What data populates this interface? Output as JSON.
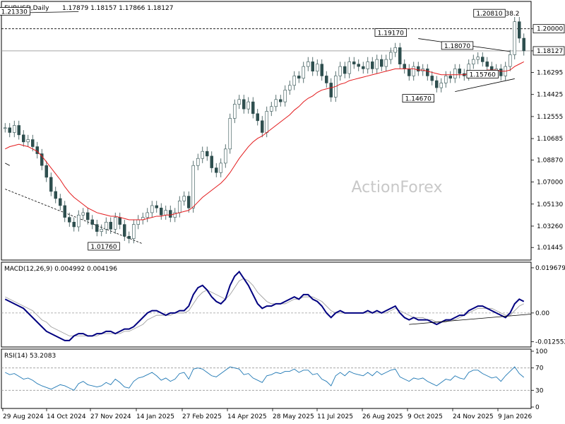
{
  "header": {
    "symbol": "EURUSD,Daily",
    "ohlc": "1.17879 1.18157 1.17866 1.18127"
  },
  "watermark": "ActionForex",
  "colors": {
    "bull": "#2f4f4f",
    "ma": "#e31a1c",
    "macd": "#000080",
    "signal": "#a0a0a0",
    "rsi": "#1f78b4",
    "price_label_bg": "#ffffff"
  },
  "chart_data": [
    {
      "type": "candlestick",
      "title": "EURUSD,Daily",
      "ylim": [
        1.005,
        1.222
      ],
      "y_ticks": [
        "1.20000",
        "1.18127",
        "1.16295",
        "1.14425",
        "1.12555",
        "1.10685",
        "1.08870",
        "1.07000",
        "1.05130",
        "1.03260",
        "1.01445"
      ],
      "current_price": "1.18127",
      "highlight_level": "1.20000",
      "annotations": [
        {
          "label": "1.20810",
          "value": 1.2081
        },
        {
          "label": "38.2",
          "value": 1.2081
        },
        {
          "label": "1.19170",
          "value": 1.1917
        },
        {
          "label": "1.18070",
          "value": 1.1807
        },
        {
          "label": "1.15760",
          "value": 1.1576
        },
        {
          "label": "1.14670",
          "value": 1.1467
        },
        {
          "label": "1.21330",
          "value": 1.2133
        },
        {
          "label": "1.01760",
          "value": 1.0176
        }
      ],
      "close_series": [
        1.116,
        1.112,
        1.118,
        1.11,
        1.104,
        1.106,
        1.1,
        1.094,
        1.084,
        1.074,
        1.062,
        1.056,
        1.05,
        1.04,
        1.036,
        1.032,
        1.042,
        1.044,
        1.038,
        1.034,
        1.028,
        1.03,
        1.036,
        1.03,
        1.04,
        1.034,
        1.024,
        1.022,
        1.034,
        1.038,
        1.04,
        1.044,
        1.05,
        1.048,
        1.042,
        1.046,
        1.04,
        1.044,
        1.054,
        1.058,
        1.048,
        1.084,
        1.09,
        1.096,
        1.092,
        1.082,
        1.078,
        1.086,
        1.098,
        1.124,
        1.136,
        1.14,
        1.132,
        1.138,
        1.128,
        1.122,
        1.112,
        1.13,
        1.134,
        1.14,
        1.138,
        1.148,
        1.152,
        1.16,
        1.158,
        1.168,
        1.172,
        1.164,
        1.17,
        1.16,
        1.154,
        1.142,
        1.16,
        1.168,
        1.162,
        1.172,
        1.17,
        1.168,
        1.166,
        1.172,
        1.166,
        1.174,
        1.168,
        1.174,
        1.18,
        1.184,
        1.17,
        1.166,
        1.16,
        1.168,
        1.164,
        1.166,
        1.16,
        1.156,
        1.15,
        1.154,
        1.16,
        1.158,
        1.166,
        1.162,
        1.16,
        1.17,
        1.174,
        1.176,
        1.172,
        1.168,
        1.164,
        1.166,
        1.16,
        1.168,
        1.178,
        1.206,
        1.192,
        1.18127
      ],
      "ma_series": [
        1.098,
        1.1,
        1.101,
        1.102,
        1.101,
        1.1,
        1.098,
        1.096,
        1.092,
        1.087,
        1.082,
        1.077,
        1.072,
        1.066,
        1.061,
        1.057,
        1.054,
        1.051,
        1.048,
        1.046,
        1.044,
        1.043,
        1.042,
        1.041,
        1.041,
        1.04,
        1.039,
        1.038,
        1.038,
        1.038,
        1.038,
        1.039,
        1.04,
        1.041,
        1.041,
        1.042,
        1.042,
        1.043,
        1.044,
        1.045,
        1.046,
        1.049,
        1.053,
        1.057,
        1.06,
        1.063,
        1.066,
        1.069,
        1.073,
        1.078,
        1.084,
        1.09,
        1.095,
        1.1,
        1.104,
        1.107,
        1.109,
        1.112,
        1.115,
        1.118,
        1.121,
        1.124,
        1.127,
        1.131,
        1.134,
        1.138,
        1.141,
        1.143,
        1.146,
        1.148,
        1.149,
        1.15,
        1.151,
        1.153,
        1.154,
        1.156,
        1.157,
        1.158,
        1.159,
        1.16,
        1.161,
        1.162,
        1.163,
        1.164,
        1.165,
        1.166,
        1.166,
        1.166,
        1.166,
        1.166,
        1.165,
        1.165,
        1.164,
        1.163,
        1.162,
        1.161,
        1.161,
        1.161,
        1.161,
        1.161,
        1.161,
        1.162,
        1.163,
        1.164,
        1.164,
        1.165,
        1.165,
        1.165,
        1.164,
        1.164,
        1.165,
        1.168,
        1.17,
        1.172
      ]
    },
    {
      "type": "line",
      "title": "MACD(12,26,9) 0.004992 0.004196",
      "ylim": [
        -0.0142,
        0.0212
      ],
      "y_ticks": [
        "0.019679",
        "0.00",
        "-0.012552"
      ],
      "y_tick_values": [
        0.019679,
        0.0,
        -0.012552
      ],
      "macd_series": [
        0.006,
        0.005,
        0.004,
        0.003,
        0.002,
        0.0,
        -0.002,
        -0.004,
        -0.006,
        -0.008,
        -0.009,
        -0.01,
        -0.011,
        -0.012,
        -0.012,
        -0.01,
        -0.009,
        -0.009,
        -0.01,
        -0.01,
        -0.009,
        -0.009,
        -0.008,
        -0.008,
        -0.009,
        -0.008,
        -0.007,
        -0.007,
        -0.006,
        -0.004,
        -0.002,
        0.0,
        0.001,
        0.001,
        0.0,
        -0.001,
        0.0,
        0.0,
        0.001,
        0.001,
        0.003,
        0.008,
        0.011,
        0.012,
        0.01,
        0.007,
        0.005,
        0.004,
        0.006,
        0.012,
        0.016,
        0.018,
        0.015,
        0.012,
        0.008,
        0.004,
        0.002,
        0.003,
        0.003,
        0.004,
        0.004,
        0.005,
        0.006,
        0.007,
        0.006,
        0.008,
        0.008,
        0.006,
        0.005,
        0.003,
        0.0,
        -0.002,
        0.0,
        0.001,
        0.0,
        0.0,
        0.0,
        0.0,
        0.0,
        0.001,
        0.0,
        0.001,
        0.0,
        0.001,
        0.002,
        0.003,
        0.0,
        -0.002,
        -0.003,
        -0.002,
        -0.003,
        -0.003,
        -0.003,
        -0.004,
        -0.005,
        -0.004,
        -0.003,
        -0.003,
        -0.002,
        -0.001,
        -0.001,
        0.001,
        0.002,
        0.003,
        0.003,
        0.002,
        0.001,
        0.0,
        -0.001,
        -0.002,
        0.0,
        0.004,
        0.006,
        0.005
      ],
      "signal_series": [
        0.007,
        0.006,
        0.005,
        0.004,
        0.003,
        0.002,
        0.001,
        -0.001,
        -0.003,
        -0.004,
        -0.006,
        -0.007,
        -0.008,
        -0.009,
        -0.01,
        -0.01,
        -0.01,
        -0.01,
        -0.01,
        -0.01,
        -0.01,
        -0.009,
        -0.009,
        -0.009,
        -0.009,
        -0.009,
        -0.008,
        -0.008,
        -0.007,
        -0.006,
        -0.005,
        -0.003,
        -0.002,
        -0.001,
        -0.001,
        -0.001,
        -0.001,
        0.0,
        0.0,
        0.0,
        0.001,
        0.004,
        0.007,
        0.009,
        0.01,
        0.009,
        0.008,
        0.007,
        0.006,
        0.008,
        0.011,
        0.014,
        0.015,
        0.014,
        0.012,
        0.009,
        0.007,
        0.005,
        0.004,
        0.004,
        0.004,
        0.004,
        0.005,
        0.006,
        0.006,
        0.007,
        0.007,
        0.007,
        0.006,
        0.005,
        0.003,
        0.001,
        0.0,
        0.0,
        0.0,
        0.0,
        0.0,
        0.0,
        0.0,
        0.0,
        0.0,
        0.0,
        0.0,
        0.0,
        0.001,
        0.002,
        0.001,
        0.0,
        -0.001,
        -0.002,
        -0.002,
        -0.002,
        -0.003,
        -0.003,
        -0.004,
        -0.004,
        -0.004,
        -0.003,
        -0.003,
        -0.002,
        -0.001,
        0.0,
        0.001,
        0.002,
        0.002,
        0.002,
        0.002,
        0.001,
        0.0,
        -0.001,
        -0.001,
        0.001,
        0.003,
        0.004
      ]
    },
    {
      "type": "line",
      "title": "RSI(14) 53.2083",
      "ylim": [
        0,
        100
      ],
      "y_ticks": [
        "100",
        "70",
        "30",
        "0"
      ],
      "y_tick_values": [
        100,
        70,
        30,
        0
      ],
      "series": [
        62,
        58,
        60,
        55,
        50,
        52,
        48,
        42,
        38,
        35,
        32,
        36,
        40,
        38,
        34,
        30,
        42,
        46,
        40,
        38,
        36,
        38,
        44,
        40,
        50,
        44,
        36,
        34,
        46,
        52,
        54,
        58,
        62,
        56,
        48,
        52,
        46,
        50,
        60,
        62,
        50,
        68,
        70,
        68,
        62,
        56,
        54,
        60,
        66,
        72,
        70,
        68,
        58,
        60,
        52,
        48,
        44,
        56,
        58,
        62,
        60,
        64,
        64,
        68,
        62,
        66,
        66,
        58,
        60,
        50,
        46,
        38,
        56,
        62,
        56,
        64,
        60,
        58,
        56,
        62,
        56,
        64,
        58,
        62,
        66,
        68,
        54,
        50,
        46,
        52,
        50,
        52,
        46,
        42,
        38,
        44,
        50,
        48,
        56,
        52,
        50,
        62,
        66,
        66,
        60,
        56,
        52,
        54,
        46,
        56,
        64,
        72,
        60,
        53.2
      ]
    }
  ],
  "x_axis_labels": [
    "29 Aug 2024",
    "14 Oct 2024",
    "27 Nov 2024",
    "14 Jan 2025",
    "27 Feb 2025",
    "14 Apr 2025",
    "28 May 2025",
    "11 Jul 2025",
    "26 Aug 2025",
    "9 Oct 2025",
    "24 Nov 2025",
    "9 Jan 2026"
  ]
}
